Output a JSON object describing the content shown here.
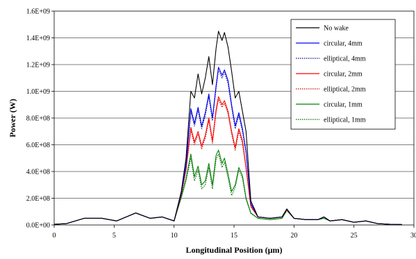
{
  "chart_data": {
    "type": "line",
    "title": "",
    "xlabel": "Longitudinal Position (µm)",
    "ylabel": "Power (W)",
    "xlim": [
      0,
      30
    ],
    "ylim": [
      0,
      1600000000.0
    ],
    "x_ticks": [
      0,
      5,
      10,
      15,
      20,
      25,
      30
    ],
    "x_tick_labels": [
      "0",
      "5",
      "10",
      "15",
      "20",
      "25",
      "30"
    ],
    "y_ticks": [
      0,
      200000000.0,
      400000000.0,
      600000000.0,
      800000000.0,
      1000000000.0,
      1200000000.0,
      1400000000.0,
      1600000000.0
    ],
    "y_tick_labels": [
      "0.0E+00",
      "2.0E+08",
      "4.0E+08",
      "6.0E+08",
      "8.0E+08",
      "1.0E+09",
      "1.2E+09",
      "1.4E+09",
      "1.6E+09"
    ],
    "grid": "horizontal",
    "legend_position": "top-right",
    "series": [
      {
        "name": "No wake",
        "color": "#000000",
        "dash": "solid",
        "x": [
          0,
          1,
          2.5,
          4,
          5.2,
          6.8,
          8,
          9,
          10,
          10.6,
          11,
          11.4,
          11.7,
          12,
          12.3,
          12.6,
          12.9,
          13.2,
          13.5,
          13.7,
          14,
          14.2,
          14.5,
          14.8,
          15.1,
          15.4,
          15.7,
          16,
          16.4,
          17,
          18,
          19,
          19.4,
          20,
          21,
          22,
          22.5,
          23,
          24,
          25,
          26,
          27,
          28,
          29
        ],
        "y": [
          5000000.0,
          10000000.0,
          50000000.0,
          50000000.0,
          30000000.0,
          90000000.0,
          50000000.0,
          60000000.0,
          30000000.0,
          250000000.0,
          500000000.0,
          1000000000.0,
          950000000.0,
          1130000000.0,
          980000000.0,
          1100000000.0,
          1260000000.0,
          1050000000.0,
          1320000000.0,
          1450000000.0,
          1380000000.0,
          1440000000.0,
          1330000000.0,
          1150000000.0,
          950000000.0,
          1000000000.0,
          850000000.0,
          700000000.0,
          180000000.0,
          60000000.0,
          50000000.0,
          60000000.0,
          120000000.0,
          50000000.0,
          40000000.0,
          40000000.0,
          60000000.0,
          30000000.0,
          40000000.0,
          20000000.0,
          30000000.0,
          10000000.0,
          5000000.0,
          3000000.0
        ]
      },
      {
        "name": "circular, 4mm",
        "color": "#0000ff",
        "dash": "solid",
        "x": [
          0,
          1,
          2.5,
          4,
          5.2,
          6.8,
          8,
          9,
          10,
          10.6,
          11,
          11.4,
          11.7,
          12,
          12.3,
          12.6,
          12.9,
          13.2,
          13.5,
          13.7,
          14,
          14.2,
          14.5,
          14.8,
          15.1,
          15.4,
          15.7,
          16,
          16.4,
          17,
          18,
          19,
          19.4,
          20,
          21,
          22,
          22.5,
          23,
          24,
          25,
          26,
          27,
          28,
          29
        ],
        "y": [
          5000000.0,
          10000000.0,
          50000000.0,
          50000000.0,
          30000000.0,
          90000000.0,
          50000000.0,
          60000000.0,
          30000000.0,
          240000000.0,
          450000000.0,
          870000000.0,
          760000000.0,
          880000000.0,
          740000000.0,
          840000000.0,
          980000000.0,
          800000000.0,
          1040000000.0,
          1180000000.0,
          1120000000.0,
          1160000000.0,
          1080000000.0,
          900000000.0,
          740000000.0,
          840000000.0,
          720000000.0,
          550000000.0,
          160000000.0,
          60000000.0,
          50000000.0,
          60000000.0,
          120000000.0,
          50000000.0,
          40000000.0,
          40000000.0,
          60000000.0,
          30000000.0,
          40000000.0,
          20000000.0,
          30000000.0,
          10000000.0,
          5000000.0,
          3000000.0
        ]
      },
      {
        "name": "elliptical, 4mm",
        "color": "#000080",
        "dash": "dotted",
        "x": [
          0,
          1,
          2.5,
          4,
          5.2,
          6.8,
          8,
          9,
          10,
          10.6,
          11,
          11.4,
          11.7,
          12,
          12.3,
          12.6,
          12.9,
          13.2,
          13.5,
          13.7,
          14,
          14.2,
          14.5,
          14.8,
          15.1,
          15.4,
          15.7,
          16,
          16.4,
          17,
          18,
          19,
          19.4,
          20,
          21,
          22,
          22.5,
          23,
          24,
          25,
          26,
          27,
          28,
          29
        ],
        "y": [
          5000000.0,
          10000000.0,
          50000000.0,
          50000000.0,
          30000000.0,
          90000000.0,
          50000000.0,
          60000000.0,
          30000000.0,
          235000000.0,
          440000000.0,
          850000000.0,
          740000000.0,
          860000000.0,
          720000000.0,
          820000000.0,
          960000000.0,
          780000000.0,
          1020000000.0,
          1160000000.0,
          1100000000.0,
          1140000000.0,
          1060000000.0,
          880000000.0,
          720000000.0,
          820000000.0,
          700000000.0,
          540000000.0,
          155000000.0,
          60000000.0,
          50000000.0,
          60000000.0,
          120000000.0,
          50000000.0,
          40000000.0,
          40000000.0,
          60000000.0,
          30000000.0,
          40000000.0,
          20000000.0,
          30000000.0,
          10000000.0,
          5000000.0,
          3000000.0
        ]
      },
      {
        "name": "circular, 2mm",
        "color": "#ff0000",
        "dash": "solid",
        "x": [
          0,
          1,
          2.5,
          4,
          5.2,
          6.8,
          8,
          9,
          10,
          10.6,
          11,
          11.4,
          11.7,
          12,
          12.3,
          12.6,
          12.9,
          13.2,
          13.5,
          13.7,
          14,
          14.2,
          14.5,
          14.8,
          15.1,
          15.4,
          15.7,
          16,
          16.4,
          17,
          18,
          19,
          19.4,
          20,
          21,
          22,
          22.5,
          23,
          24,
          25,
          26,
          27,
          28,
          29
        ],
        "y": [
          5000000.0,
          10000000.0,
          50000000.0,
          50000000.0,
          30000000.0,
          90000000.0,
          50000000.0,
          60000000.0,
          30000000.0,
          230000000.0,
          420000000.0,
          730000000.0,
          620000000.0,
          700000000.0,
          590000000.0,
          670000000.0,
          800000000.0,
          630000000.0,
          860000000.0,
          960000000.0,
          900000000.0,
          930000000.0,
          850000000.0,
          700000000.0,
          580000000.0,
          720000000.0,
          630000000.0,
          430000000.0,
          140000000.0,
          60000000.0,
          50000000.0,
          60000000.0,
          115000000.0,
          50000000.0,
          40000000.0,
          40000000.0,
          60000000.0,
          30000000.0,
          40000000.0,
          20000000.0,
          30000000.0,
          10000000.0,
          5000000.0,
          3000000.0
        ]
      },
      {
        "name": "elliptical, 2mm",
        "color": "#cc0000",
        "dash": "dotted",
        "x": [
          0,
          1,
          2.5,
          4,
          5.2,
          6.8,
          8,
          9,
          10,
          10.6,
          11,
          11.4,
          11.7,
          12,
          12.3,
          12.6,
          12.9,
          13.2,
          13.5,
          13.7,
          14,
          14.2,
          14.5,
          14.8,
          15.1,
          15.4,
          15.7,
          16,
          16.4,
          17,
          18,
          19,
          19.4,
          20,
          21,
          22,
          22.5,
          23,
          24,
          25,
          26,
          27,
          28,
          29
        ],
        "y": [
          5000000.0,
          10000000.0,
          50000000.0,
          50000000.0,
          30000000.0,
          90000000.0,
          50000000.0,
          60000000.0,
          30000000.0,
          225000000.0,
          410000000.0,
          710000000.0,
          600000000.0,
          680000000.0,
          570000000.0,
          650000000.0,
          780000000.0,
          610000000.0,
          840000000.0,
          940000000.0,
          880000000.0,
          910000000.0,
          830000000.0,
          680000000.0,
          560000000.0,
          700000000.0,
          610000000.0,
          420000000.0,
          135000000.0,
          60000000.0,
          50000000.0,
          60000000.0,
          115000000.0,
          50000000.0,
          40000000.0,
          40000000.0,
          60000000.0,
          30000000.0,
          40000000.0,
          20000000.0,
          30000000.0,
          10000000.0,
          5000000.0,
          3000000.0
        ]
      },
      {
        "name": "circular, 1mm",
        "color": "#008000",
        "dash": "solid",
        "x": [
          0,
          1,
          2.5,
          4,
          5.2,
          6.8,
          8,
          9,
          10,
          10.6,
          11,
          11.4,
          11.7,
          12,
          12.3,
          12.6,
          12.9,
          13.2,
          13.5,
          13.7,
          14,
          14.2,
          14.5,
          14.8,
          15.1,
          15.4,
          15.7,
          16,
          16.4,
          17,
          18,
          19,
          19.4,
          20,
          21,
          22,
          22.5,
          23,
          24,
          25,
          26,
          27,
          28,
          29
        ],
        "y": [
          5000000.0,
          10000000.0,
          50000000.0,
          50000000.0,
          30000000.0,
          90000000.0,
          50000000.0,
          60000000.0,
          30000000.0,
          210000000.0,
          350000000.0,
          530000000.0,
          360000000.0,
          440000000.0,
          300000000.0,
          330000000.0,
          460000000.0,
          300000000.0,
          520000000.0,
          560000000.0,
          460000000.0,
          500000000.0,
          380000000.0,
          250000000.0,
          300000000.0,
          430000000.0,
          370000000.0,
          200000000.0,
          90000000.0,
          50000000.0,
          40000000.0,
          50000000.0,
          110000000.0,
          50000000.0,
          40000000.0,
          40000000.0,
          50000000.0,
          30000000.0,
          40000000.0,
          20000000.0,
          30000000.0,
          10000000.0,
          5000000.0,
          3000000.0
        ]
      },
      {
        "name": "elliptical, 1mm",
        "color": "#006400",
        "dash": "dotted",
        "x": [
          0,
          1,
          2.5,
          4,
          5.2,
          6.8,
          8,
          9,
          10,
          10.6,
          11,
          11.4,
          11.7,
          12,
          12.3,
          12.6,
          12.9,
          13.2,
          13.5,
          13.7,
          14,
          14.2,
          14.5,
          14.8,
          15.1,
          15.4,
          15.7,
          16,
          16.4,
          17,
          18,
          19,
          19.4,
          20,
          21,
          22,
          22.5,
          23,
          24,
          25,
          26,
          27,
          28,
          29
        ],
        "y": [
          5000000.0,
          10000000.0,
          50000000.0,
          50000000.0,
          30000000.0,
          90000000.0,
          50000000.0,
          60000000.0,
          30000000.0,
          200000000.0,
          330000000.0,
          500000000.0,
          330000000.0,
          410000000.0,
          270000000.0,
          300000000.0,
          430000000.0,
          270000000.0,
          490000000.0,
          530000000.0,
          430000000.0,
          470000000.0,
          350000000.0,
          220000000.0,
          280000000.0,
          410000000.0,
          350000000.0,
          190000000.0,
          85000000.0,
          50000000.0,
          40000000.0,
          50000000.0,
          105000000.0,
          50000000.0,
          40000000.0,
          40000000.0,
          50000000.0,
          30000000.0,
          40000000.0,
          20000000.0,
          30000000.0,
          10000000.0,
          5000000.0,
          3000000.0
        ]
      }
    ]
  }
}
